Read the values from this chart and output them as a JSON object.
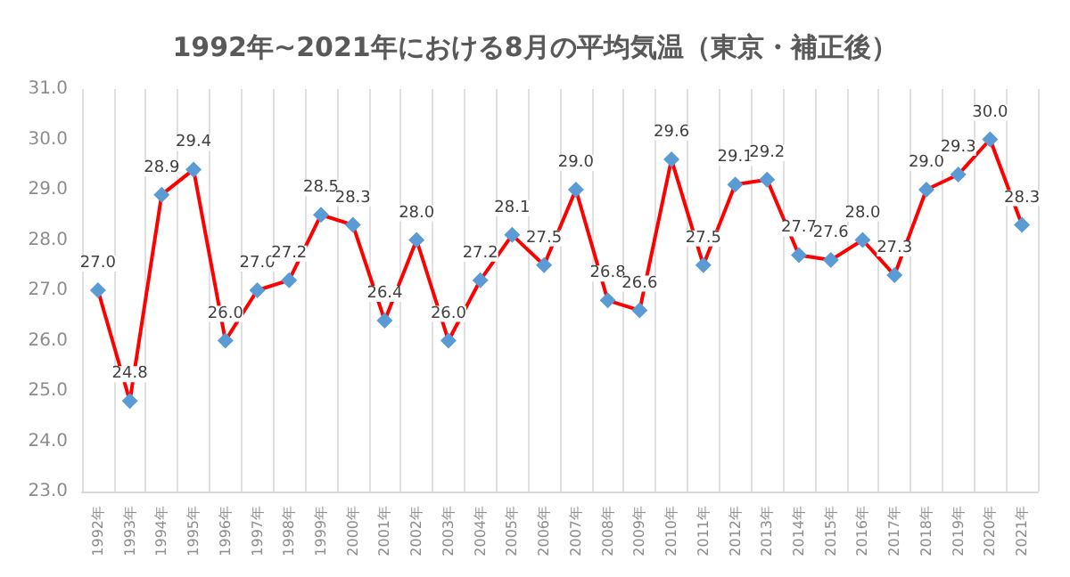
{
  "chart_data": {
    "type": "line",
    "title": "1992年~2021年における8月の平均気温（東京・補正後）",
    "categories": [
      "1992年",
      "1993年",
      "1994年",
      "1995年",
      "1996年",
      "1997年",
      "1998年",
      "1999年",
      "2000年",
      "2001年",
      "2002年",
      "2003年",
      "2004年",
      "2005年",
      "2006年",
      "2007年",
      "2008年",
      "2009年",
      "2010年",
      "2011年",
      "2012年",
      "2013年",
      "2014年",
      "2015年",
      "2016年",
      "2017年",
      "2018年",
      "2019年",
      "2020年",
      "2021年"
    ],
    "series": [
      {
        "color": "#ff0000",
        "values": [
          27.0,
          24.8,
          28.9,
          29.4,
          26.0,
          27.0,
          27.2,
          28.5,
          28.3,
          26.4,
          28.0,
          26.0,
          27.2,
          28.1,
          27.5,
          29.0,
          26.8,
          26.6,
          29.6,
          27.5,
          29.1,
          29.2,
          27.7,
          27.6,
          28.0,
          27.3,
          29.0,
          29.3,
          30.0,
          28.3
        ],
        "value_labels": [
          "27.0",
          "24.8",
          "28.9",
          "29.4",
          "26.0",
          "27.0",
          "27.2",
          "28.5",
          "28.3",
          "26.4",
          "28.0",
          "26.0",
          "27.2",
          "28.1",
          "27.5",
          "29.0",
          "26.8",
          "26.6",
          "29.6",
          "27.5",
          "29.1",
          "29.2",
          "27.7",
          "27.6",
          "28.0",
          "27.3",
          "29.0",
          "29.3",
          "30.0",
          "28.3"
        ],
        "colors": [
          "#5b9bd5",
          "#5b9bd5",
          "#5b9bd5",
          "#5b9bd5",
          "#5b9bd5",
          "#5b9bd5",
          "#5b9bd5",
          "#5b9bd5",
          "#5b9bd5",
          "#5b9bd5",
          "#5b9bd5",
          "#5b9bd5",
          "#5b9bd5",
          "#5b9bd5",
          "#5b9bd5",
          "#5b9bd5",
          "#5b9bd5",
          "#5b9bd5",
          "#5b9bd5",
          "#5b9bd5",
          "#5b9bd5",
          "#5b9bd5",
          "#5b9bd5",
          "#5b9bd5",
          "#5b9bd5",
          "#5b9bd5",
          "#5b9bd5",
          "#5b9bd5",
          "#5b9bd5",
          "#5b9bd5"
        ]
      }
    ],
    "ylim": [
      23,
      31
    ],
    "yticks": [
      {
        "value": 23,
        "label": "23.0"
      },
      {
        "value": 24,
        "label": "24.0"
      },
      {
        "value": 25,
        "label": "25.0"
      },
      {
        "value": 26,
        "label": "26.0"
      },
      {
        "value": 27,
        "label": "27.0"
      },
      {
        "value": 28,
        "label": "28.0"
      },
      {
        "value": 29,
        "label": "29.0"
      },
      {
        "value": 30,
        "label": "30.0"
      },
      {
        "value": 31,
        "label": "31.0"
      }
    ],
    "grid": "x",
    "marker": "diamond",
    "line_style": "solid"
  }
}
